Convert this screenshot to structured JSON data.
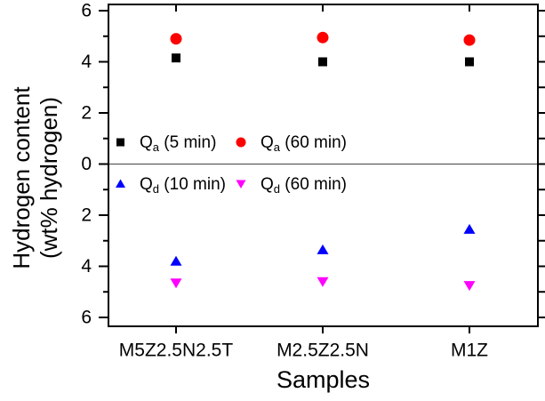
{
  "figure": {
    "background": "#ffffff",
    "axis_color": "#000000",
    "zero_line_color": "#444444"
  },
  "chart_data": {
    "type": "scatter",
    "title": "",
    "xlabel": "Samples",
    "ylabel_line1": "Hydrogen content",
    "ylabel_line2": "(wt% hydrogen)",
    "categories": [
      "M5Z2.5N2.5T",
      "M2.5Z2.5N",
      "M1Z"
    ],
    "ylim": [
      -6.3,
      6.3
    ],
    "y_tick_values": [
      6,
      4,
      2,
      0,
      -2,
      -4,
      -6
    ],
    "y_tick_labels": [
      "6",
      "4",
      "2",
      "0",
      "2",
      "4",
      "6"
    ],
    "y_minor_tick_values": [
      5,
      3,
      1,
      -1,
      -3,
      -5
    ],
    "axis_note": "lower half shows desorbed amount as positive magnitude (mirrored axis)",
    "grid": false,
    "zero_line": true,
    "legend_position": "inside middle-left, two rows split by zero line",
    "series": [
      {
        "name": "Qa (5 min)",
        "legend": {
          "main": "Q",
          "sub": "a",
          "rest": " (5 min)"
        },
        "marker": "square",
        "color": "#000000",
        "values": [
          4.15,
          4.0,
          4.0
        ]
      },
      {
        "name": "Qa (60 min)",
        "legend": {
          "main": "Q",
          "sub": "a",
          "rest": " (60 min)"
        },
        "marker": "circle",
        "color": "#ff0000",
        "values": [
          4.9,
          4.95,
          4.85
        ]
      },
      {
        "name": "Qd (10 min)",
        "legend": {
          "main": "Q",
          "sub": "d",
          "rest": " (10 min)"
        },
        "marker": "triangle-up",
        "color": "#0000ff",
        "values": [
          -3.8,
          -3.35,
          -2.55
        ]
      },
      {
        "name": "Qd (60 min)",
        "legend": {
          "main": "Q",
          "sub": "d",
          "rest": " (60 min)"
        },
        "marker": "triangle-down",
        "color": "#ff00ff",
        "values": [
          -4.65,
          -4.6,
          -4.75
        ]
      }
    ]
  }
}
